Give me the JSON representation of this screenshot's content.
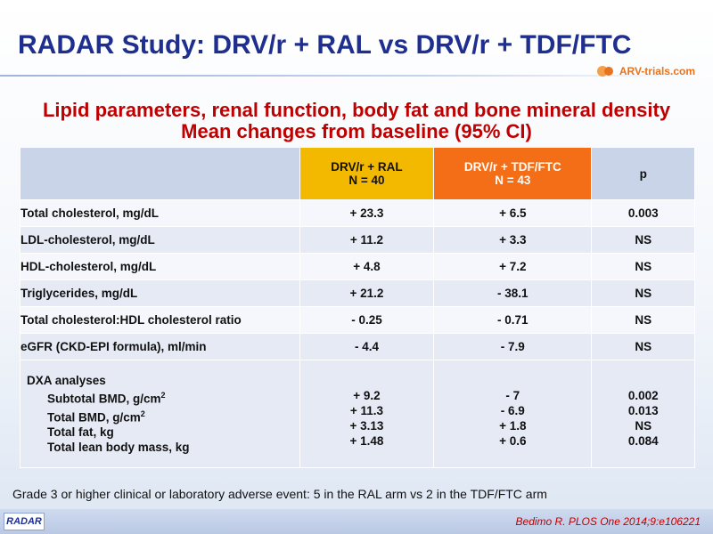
{
  "slide": {
    "title": "RADAR Study: DRV/r + RAL vs DRV/r + TDF/FTC",
    "logo_text": "ARV-trials.com",
    "subtitle_line1": "Lipid parameters, renal function, body fat and bone mineral density",
    "subtitle_line2": "Mean changes from baseline (95% CI)"
  },
  "table": {
    "header": {
      "col_ral_line1": "DRV/r + RAL",
      "col_ral_line2": "N = 40",
      "col_tdf_line1": "DRV/r + TDF/FTC",
      "col_tdf_line2": "N = 43",
      "col_p": "p"
    },
    "rows": [
      {
        "label": "Total cholesterol, mg/dL",
        "ral": "+ 23.3",
        "tdf": "+ 6.5",
        "p": "0.003"
      },
      {
        "label": "LDL-cholesterol, mg/dL",
        "ral": "+ 11.2",
        "tdf": "+ 3.3",
        "p": "NS"
      },
      {
        "label": "HDL-cholesterol, mg/dL",
        "ral": "+ 4.8",
        "tdf": "+ 7.2",
        "p": "NS"
      },
      {
        "label": "Triglycerides, mg/dL",
        "ral": "+ 21.2",
        "tdf": "- 38.1",
        "p": "NS"
      },
      {
        "label": "Total cholesterol:HDL cholesterol ratio",
        "ral": "- 0.25",
        "tdf": "- 0.71",
        "p": "NS"
      },
      {
        "label": "eGFR (CKD-EPI formula), ml/min",
        "ral": "- 4.4",
        "tdf": "- 7.9",
        "p": "NS"
      }
    ],
    "dxa": {
      "title": "DXA analyses",
      "items": [
        {
          "label": "Subtotal BMD, g/cm",
          "sup": "2",
          "ral": "+ 9.2",
          "tdf": "- 7",
          "p": "0.002"
        },
        {
          "label": "Total BMD, g/cm",
          "sup": "2",
          "ral": "+ 11.3",
          "tdf": "- 6.9",
          "p": "0.013"
        },
        {
          "label": "Total fat, kg",
          "sup": "",
          "ral": "+ 3.13",
          "tdf": "+ 1.8",
          "p": "NS"
        },
        {
          "label": "Total lean body mass, kg",
          "sup": "",
          "ral": "+ 1.48",
          "tdf": "+ 0.6",
          "p": "0.084"
        }
      ]
    }
  },
  "footnote": "Grade 3 or higher clinical or laboratory adverse event: 5 in the RAL arm  vs 2 in the TDF/FTC arm",
  "badge": "RADAR",
  "reference": "Bedimo R. PLOS One 2014;9:e106221",
  "colors": {
    "title": "#1f2f8f",
    "subtitle": "#c00000",
    "ral_header": "#f3b800",
    "tdf_header": "#f46d17"
  }
}
